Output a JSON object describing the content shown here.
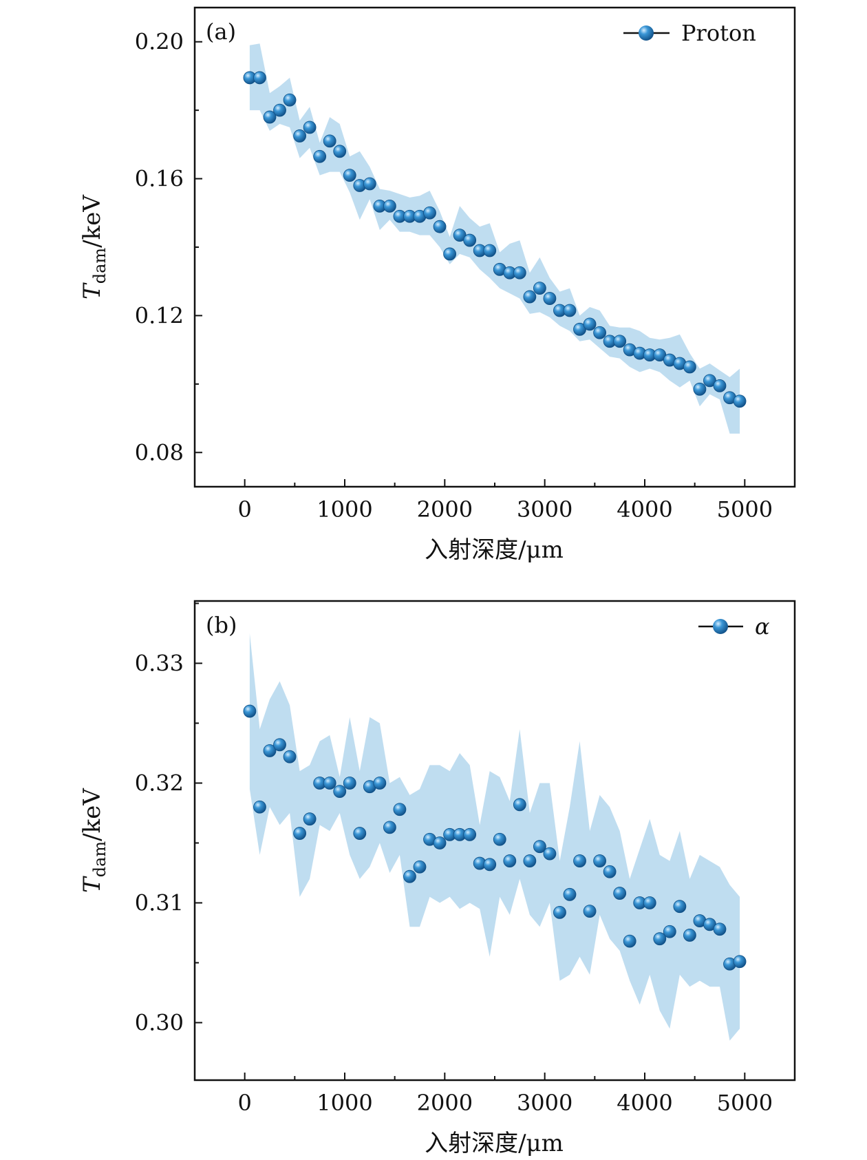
{
  "colors": {
    "marker": "#2a86c7",
    "marker_dark": "#0e4f86",
    "marker_highlight": "#cfeaff",
    "band": "#a9d1eb",
    "axis": "#111111"
  },
  "chart_data": [
    {
      "type": "scatter",
      "panel_label": "(a)",
      "legend": "Proton",
      "legend_position": "top-right",
      "xlabel": "入射深度/μm",
      "ylabel_main": "T",
      "ylabel_sub": "dam",
      "ylabel_rest": "/keV",
      "xlim": [
        -500,
        5500
      ],
      "ylim": [
        0.07,
        0.21
      ],
      "xticks": [
        0,
        1000,
        2000,
        3000,
        4000,
        5000
      ],
      "xtick_labels": [
        "0",
        "1000",
        "2000",
        "3000",
        "4000",
        "5000"
      ],
      "yticks": [
        0.08,
        0.12,
        0.16,
        0.2
      ],
      "ytick_labels": [
        "0.08",
        "0.12",
        "0.16",
        "0.20"
      ],
      "x": [
        50,
        150,
        250,
        350,
        450,
        550,
        650,
        750,
        850,
        950,
        1050,
        1150,
        1250,
        1350,
        1450,
        1550,
        1650,
        1750,
        1850,
        1950,
        2050,
        2150,
        2250,
        2350,
        2450,
        2550,
        2650,
        2750,
        2850,
        2950,
        3050,
        3150,
        3250,
        3350,
        3450,
        3550,
        3650,
        3750,
        3850,
        3950,
        4050,
        4150,
        4250,
        4350,
        4450,
        4550,
        4650,
        4750,
        4850,
        4950
      ],
      "y": [
        0.1895,
        0.1895,
        0.178,
        0.18,
        0.183,
        0.1725,
        0.175,
        0.1665,
        0.171,
        0.168,
        0.161,
        0.158,
        0.1585,
        0.152,
        0.152,
        0.149,
        0.149,
        0.149,
        0.15,
        0.146,
        0.138,
        0.1435,
        0.142,
        0.139,
        0.139,
        0.1335,
        0.1325,
        0.1325,
        0.1255,
        0.128,
        0.125,
        0.1215,
        0.1215,
        0.116,
        0.1175,
        0.115,
        0.1125,
        0.1125,
        0.11,
        0.109,
        0.1085,
        0.1085,
        0.107,
        0.106,
        0.105,
        0.0985,
        0.101,
        0.0995,
        0.096,
        0.095
      ],
      "band_upper": [
        0.199,
        0.1995,
        0.185,
        0.187,
        0.1895,
        0.177,
        0.181,
        0.1705,
        0.178,
        0.176,
        0.1665,
        0.168,
        0.1635,
        0.157,
        0.1565,
        0.1555,
        0.1545,
        0.155,
        0.1565,
        0.1505,
        0.143,
        0.152,
        0.1485,
        0.146,
        0.147,
        0.1385,
        0.141,
        0.142,
        0.1325,
        0.137,
        0.131,
        0.127,
        0.128,
        0.12,
        0.1225,
        0.1215,
        0.117,
        0.1165,
        0.1165,
        0.1155,
        0.1135,
        0.113,
        0.1135,
        0.1145,
        0.109,
        0.1045,
        0.106,
        0.104,
        0.102,
        0.1045
      ],
      "band_lower": [
        0.18,
        0.18,
        0.174,
        0.176,
        0.175,
        0.166,
        0.169,
        0.161,
        0.162,
        0.162,
        0.156,
        0.148,
        0.154,
        0.145,
        0.148,
        0.1445,
        0.1445,
        0.1435,
        0.1435,
        0.14,
        0.135,
        0.138,
        0.137,
        0.1335,
        0.131,
        0.128,
        0.1265,
        0.125,
        0.1205,
        0.121,
        0.1195,
        0.117,
        0.1155,
        0.1125,
        0.113,
        0.1105,
        0.108,
        0.1075,
        0.105,
        0.1035,
        0.1045,
        0.1035,
        0.101,
        0.099,
        0.101,
        0.0935,
        0.097,
        0.0955,
        0.0855,
        0.0855
      ]
    },
    {
      "type": "scatter",
      "panel_label": "(b)",
      "legend": "α",
      "legend_position": "top-right",
      "xlabel": "入射深度/μm",
      "ylabel_main": "T",
      "ylabel_sub": "dam",
      "ylabel_rest": "/keV",
      "xlim": [
        -500,
        5500
      ],
      "ylim": [
        0.2952,
        0.3352
      ],
      "xticks": [
        0,
        1000,
        2000,
        3000,
        4000,
        5000
      ],
      "xtick_labels": [
        "0",
        "1000",
        "2000",
        "3000",
        "4000",
        "5000"
      ],
      "yticks": [
        0.3,
        0.31,
        0.32,
        0.33
      ],
      "ytick_labels": [
        "0.30",
        "0.31",
        "0.32",
        "0.33"
      ],
      "x": [
        50,
        150,
        250,
        350,
        450,
        550,
        650,
        750,
        850,
        950,
        1050,
        1150,
        1250,
        1350,
        1450,
        1550,
        1650,
        1750,
        1850,
        1950,
        2050,
        2150,
        2250,
        2350,
        2450,
        2550,
        2650,
        2750,
        2850,
        2950,
        3050,
        3150,
        3250,
        3350,
        3450,
        3550,
        3650,
        3750,
        3850,
        3950,
        4050,
        4150,
        4250,
        4350,
        4450,
        4550,
        4650,
        4750,
        4850,
        4950
      ],
      "y": [
        0.326,
        0.318,
        0.3227,
        0.3232,
        0.3222,
        0.3158,
        0.317,
        0.32,
        0.32,
        0.3193,
        0.32,
        0.3158,
        0.3197,
        0.32,
        0.3163,
        0.3178,
        0.3122,
        0.313,
        0.3153,
        0.315,
        0.3157,
        0.3157,
        0.3157,
        0.3133,
        0.3132,
        0.3153,
        0.3135,
        0.3182,
        0.3135,
        0.3147,
        0.3141,
        0.3092,
        0.3107,
        0.3135,
        0.3093,
        0.3135,
        0.3126,
        0.3108,
        0.3068,
        0.31,
        0.31,
        0.307,
        0.3076,
        0.3097,
        0.3073,
        0.3085,
        0.3082,
        0.3078,
        0.3049,
        0.3051
      ],
      "band_upper": [
        0.3325,
        0.3245,
        0.327,
        0.3285,
        0.3265,
        0.321,
        0.3215,
        0.3235,
        0.324,
        0.3205,
        0.3255,
        0.321,
        0.3255,
        0.325,
        0.32,
        0.3205,
        0.319,
        0.3195,
        0.3215,
        0.3215,
        0.321,
        0.3225,
        0.3215,
        0.3165,
        0.321,
        0.3205,
        0.3185,
        0.3245,
        0.3175,
        0.32,
        0.32,
        0.3135,
        0.318,
        0.3235,
        0.316,
        0.319,
        0.318,
        0.316,
        0.312,
        0.3145,
        0.317,
        0.314,
        0.3135,
        0.316,
        0.312,
        0.314,
        0.3135,
        0.313,
        0.3115,
        0.3105
      ],
      "band_lower": [
        0.3195,
        0.314,
        0.318,
        0.3165,
        0.3175,
        0.3105,
        0.312,
        0.3165,
        0.316,
        0.3175,
        0.314,
        0.312,
        0.313,
        0.315,
        0.3125,
        0.314,
        0.308,
        0.308,
        0.3105,
        0.31,
        0.3105,
        0.3095,
        0.31,
        0.3095,
        0.3055,
        0.3105,
        0.309,
        0.312,
        0.309,
        0.308,
        0.31,
        0.3035,
        0.304,
        0.3055,
        0.304,
        0.309,
        0.307,
        0.306,
        0.3035,
        0.3015,
        0.304,
        0.301,
        0.2995,
        0.304,
        0.303,
        0.3035,
        0.303,
        0.303,
        0.2985,
        0.2995
      ]
    }
  ]
}
